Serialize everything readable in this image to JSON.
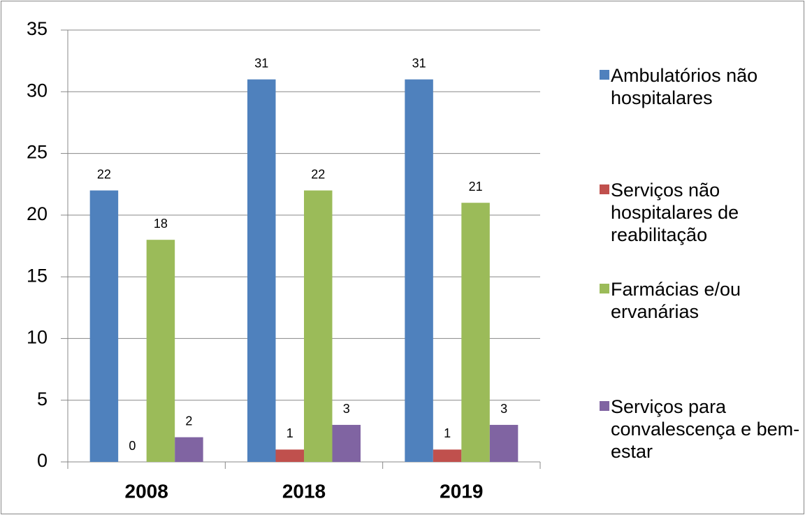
{
  "chart_data": {
    "type": "bar",
    "categories": [
      "2008",
      "2018",
      "2019"
    ],
    "series": [
      {
        "name": "Ambulatórios não hospitalares",
        "color": "#4f81bd",
        "values": [
          22,
          31,
          31
        ]
      },
      {
        "name": "Serviços não hospitalares de reabilitação",
        "color": "#c0504d",
        "values": [
          0,
          1,
          1
        ]
      },
      {
        "name": "Farmácias e/ou ervanárias",
        "color": "#9bbb59",
        "values": [
          18,
          22,
          21
        ]
      },
      {
        "name": "Serviços para convalescença e bem-estar",
        "color": "#8064a2",
        "values": [
          2,
          3,
          3
        ]
      }
    ],
    "ylim": [
      0,
      35
    ],
    "yticks": [
      0,
      5,
      10,
      15,
      20,
      25,
      30,
      35
    ],
    "grid": true,
    "legend": "right"
  }
}
